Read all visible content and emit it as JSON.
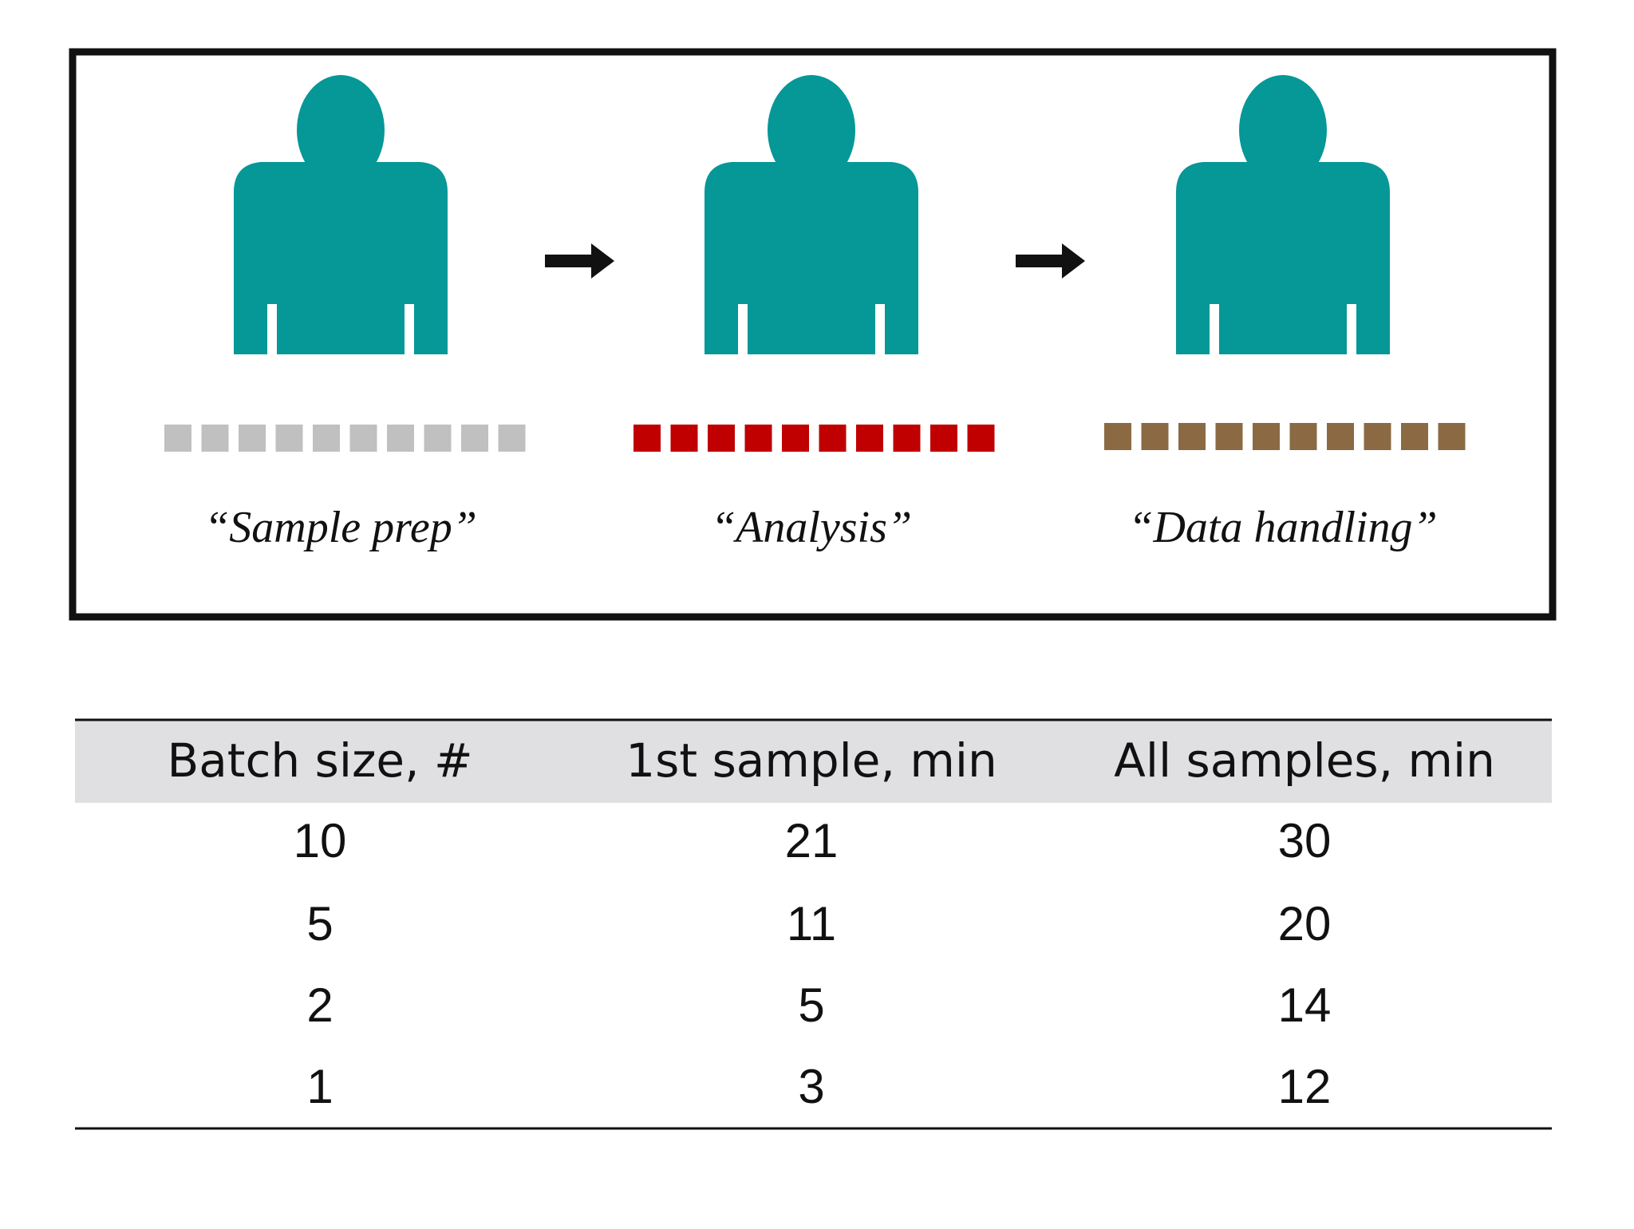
{
  "stages": [
    {
      "label": "“Sample prep”"
    },
    {
      "label": "“Analysis”"
    },
    {
      "label": "“Data handling”"
    }
  ],
  "table": {
    "header": [
      "Batch size, #",
      "1st sample, min",
      "All samples, min"
    ],
    "rows": [
      [
        10,
        21,
        30
      ],
      [
        5,
        11,
        20
      ],
      [
        2,
        5,
        14
      ],
      [
        1,
        3,
        12
      ]
    ]
  }
}
